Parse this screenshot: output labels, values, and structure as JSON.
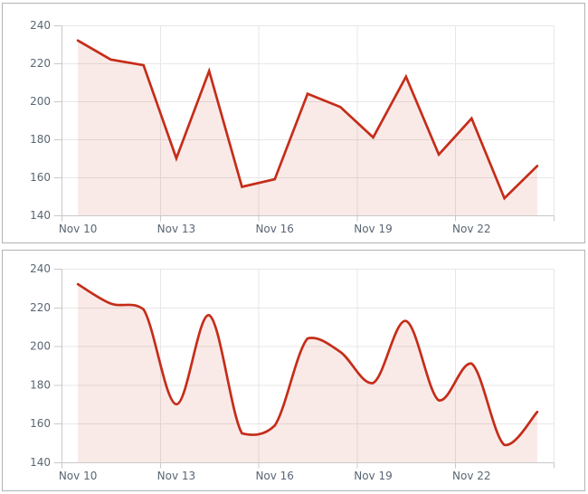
{
  "style": {
    "page_bg": "#ffffff",
    "panel_bg": "#ffffff",
    "panel_border": "#b3b3b3",
    "gridline_color": "#e7e7e7",
    "axis_line_color": "#c9c9c9",
    "tick_color": "#c9c9c9",
    "label_color": "#5a6673"
  },
  "chart_data": [
    {
      "type": "area",
      "curve": "linear",
      "title": "",
      "xlabel": "",
      "ylabel": "",
      "values": [
        232,
        222,
        219,
        170,
        216,
        155,
        159,
        204,
        197,
        181,
        213,
        172,
        191,
        149,
        166
      ],
      "x_tick_labels": [
        "Nov 10",
        "Nov 13",
        "Nov 16",
        "Nov 19",
        "Nov 22"
      ],
      "x_tick_step": 3,
      "y_ticks": [
        140,
        160,
        180,
        200,
        220,
        240
      ],
      "ylim": [
        140,
        240
      ],
      "grid": true,
      "legend": false,
      "line_color": "#c52d19",
      "fill_color": "rgba(197,45,25,0.10)"
    },
    {
      "type": "area",
      "curve": "spline",
      "title": "",
      "xlabel": "",
      "ylabel": "",
      "values": [
        232,
        222,
        219,
        170,
        216,
        155,
        159,
        204,
        197,
        181,
        213,
        172,
        191,
        149,
        166
      ],
      "x_tick_labels": [
        "Nov 10",
        "Nov 13",
        "Nov 16",
        "Nov 19",
        "Nov 22"
      ],
      "x_tick_step": 3,
      "y_ticks": [
        140,
        160,
        180,
        200,
        220,
        240
      ],
      "ylim": [
        140,
        240
      ],
      "grid": true,
      "legend": false,
      "line_color": "#c52d19",
      "fill_color": "rgba(197,45,25,0.10)"
    }
  ]
}
